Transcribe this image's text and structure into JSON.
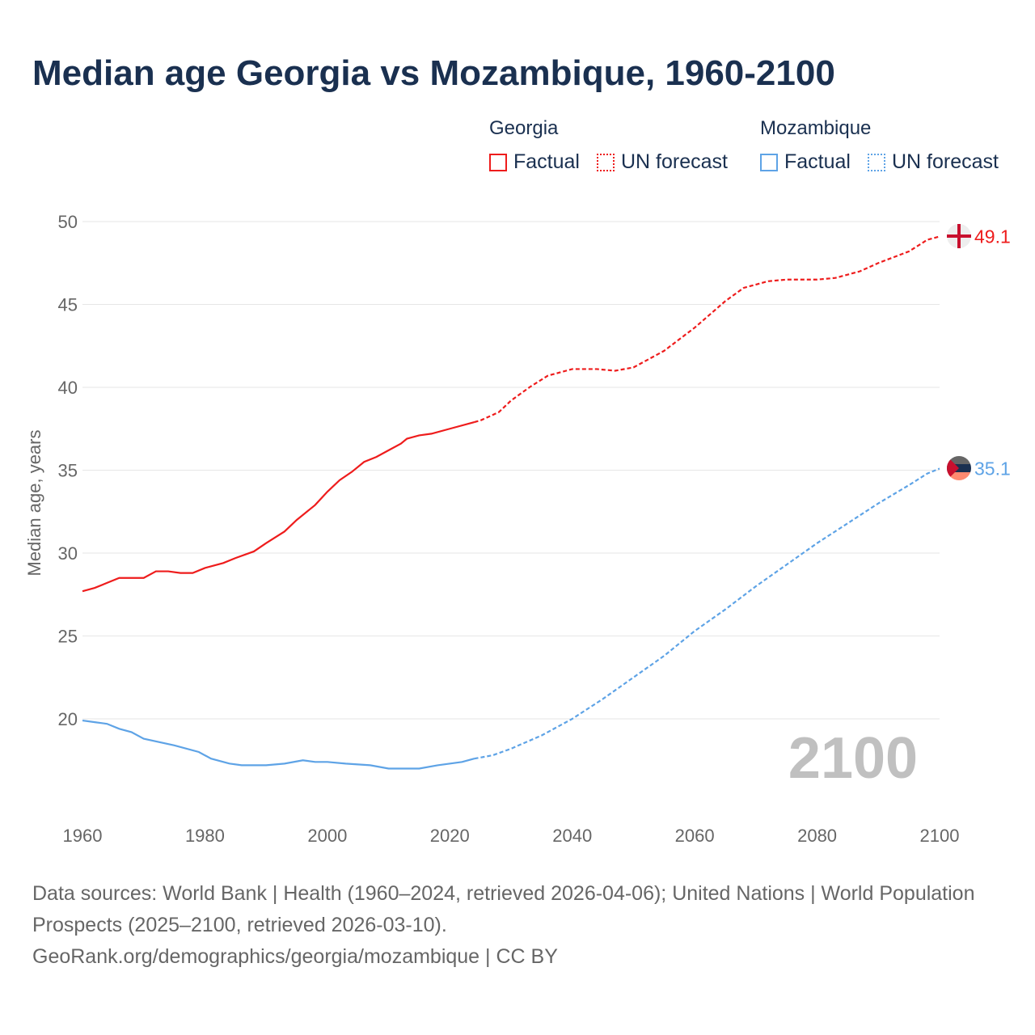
{
  "title": "Median age Georgia vs Mozambique, 1960-2100",
  "legend": {
    "groups": [
      {
        "name": "Georgia",
        "items": [
          "Factual",
          "UN forecast"
        ],
        "color": "#ee1c1c"
      },
      {
        "name": "Mozambique",
        "items": [
          "Factual",
          "UN forecast"
        ],
        "color": "#5ea3e6"
      }
    ]
  },
  "year_watermark": "2100",
  "footer": {
    "line1": "Data sources: World Bank | Health (1960–2024, retrieved 2026-04-06); United Nations | World Population Prospects (2025–2100, retrieved 2026-03-10).",
    "line2": "GeoRank.org/demographics/georgia/mozambique | CC BY"
  },
  "chart_data": {
    "type": "line",
    "title": "Median age Georgia vs Mozambique, 1960-2100",
    "xlabel": "",
    "ylabel": "Median age, years",
    "xlim": [
      1960,
      2100
    ],
    "ylim": [
      15,
      50
    ],
    "xticks": [
      1960,
      1980,
      2000,
      2020,
      2040,
      2060,
      2080,
      2100
    ],
    "yticks": [
      20,
      25,
      30,
      35,
      40,
      45,
      50
    ],
    "grid": true,
    "legend_position": "top-right",
    "series": [
      {
        "name": "Georgia",
        "color": "#ee1c1c",
        "end_label": "49.1",
        "factual": {
          "x": [
            1960,
            1962,
            1964,
            1966,
            1968,
            1970,
            1972,
            1974,
            1976,
            1978,
            1980,
            1983,
            1985,
            1988,
            1990,
            1993,
            1995,
            1998,
            2000,
            2002,
            2004,
            2006,
            2008,
            2010,
            2012,
            2013,
            2015,
            2017,
            2020,
            2024
          ],
          "y": [
            27.7,
            27.9,
            28.2,
            28.5,
            28.5,
            28.5,
            28.9,
            28.9,
            28.8,
            28.8,
            29.1,
            29.4,
            29.7,
            30.1,
            30.6,
            31.3,
            32.0,
            32.9,
            33.7,
            34.4,
            34.9,
            35.5,
            35.8,
            36.2,
            36.6,
            36.9,
            37.1,
            37.2,
            37.5,
            37.9
          ]
        },
        "forecast": {
          "x": [
            2024,
            2025,
            2028,
            2030,
            2033,
            2036,
            2040,
            2044,
            2047,
            2050,
            2055,
            2060,
            2065,
            2068,
            2072,
            2075,
            2080,
            2083,
            2087,
            2090,
            2095,
            2098,
            2100
          ],
          "y": [
            37.9,
            38.0,
            38.5,
            39.2,
            40.0,
            40.7,
            41.1,
            41.1,
            41.0,
            41.2,
            42.2,
            43.6,
            45.2,
            46.0,
            46.4,
            46.5,
            46.5,
            46.6,
            47.0,
            47.5,
            48.2,
            48.9,
            49.1
          ]
        }
      },
      {
        "name": "Mozambique",
        "color": "#5ea3e6",
        "end_label": "35.1",
        "factual": {
          "x": [
            1960,
            1962,
            1964,
            1966,
            1968,
            1970,
            1975,
            1979,
            1981,
            1984,
            1986,
            1990,
            1993,
            1996,
            1998,
            2000,
            2003,
            2007,
            2010,
            2015,
            2018,
            2022,
            2024
          ],
          "y": [
            19.9,
            19.8,
            19.7,
            19.4,
            19.2,
            18.8,
            18.4,
            18.0,
            17.6,
            17.3,
            17.2,
            17.2,
            17.3,
            17.5,
            17.4,
            17.4,
            17.3,
            17.2,
            17.0,
            17.0,
            17.2,
            17.4,
            17.6
          ]
        },
        "forecast": {
          "x": [
            2024,
            2027,
            2030,
            2035,
            2040,
            2045,
            2050,
            2055,
            2060,
            2065,
            2070,
            2075,
            2080,
            2085,
            2090,
            2095,
            2098,
            2100
          ],
          "y": [
            17.6,
            17.8,
            18.2,
            19.0,
            20.0,
            21.2,
            22.5,
            23.8,
            25.3,
            26.6,
            28.0,
            29.3,
            30.6,
            31.8,
            33.0,
            34.1,
            34.8,
            35.1
          ]
        }
      }
    ]
  }
}
